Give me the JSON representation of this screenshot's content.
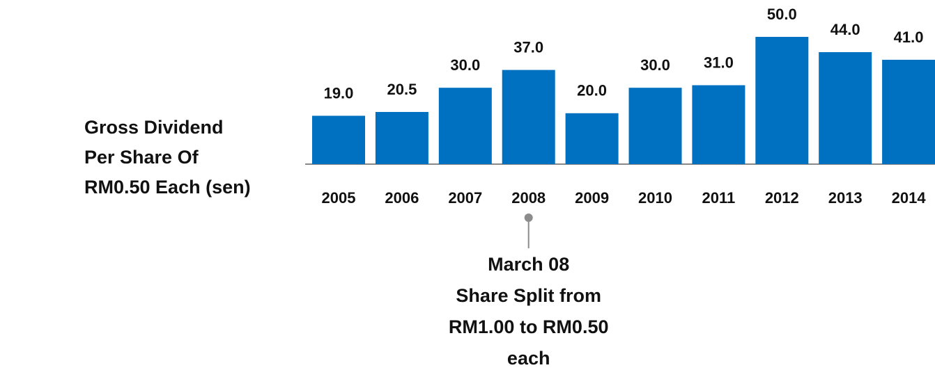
{
  "chart_data": {
    "type": "bar",
    "ylabel": [
      "Gross Dividend",
      "Per Share Of",
      "RM0.50 Each (sen)"
    ],
    "categories": [
      "2005",
      "2006",
      "2007",
      "2008",
      "2009",
      "2010",
      "2011",
      "2012",
      "2013",
      "2014"
    ],
    "values": [
      19,
      20.5,
      30,
      37,
      20,
      30,
      31,
      50,
      44,
      41
    ],
    "value_labels": [
      "19.0",
      "20.5",
      "30.0",
      "37.0",
      "20.0",
      "30.0",
      "31.0",
      "50.0",
      "44.0",
      "41.0"
    ],
    "color": "#0070c0",
    "ylim": [
      0,
      50
    ],
    "annotation": {
      "category": "2008",
      "lines": [
        "March 08",
        "Share Split from",
        "RM1.00 to RM0.50",
        "each"
      ]
    }
  }
}
